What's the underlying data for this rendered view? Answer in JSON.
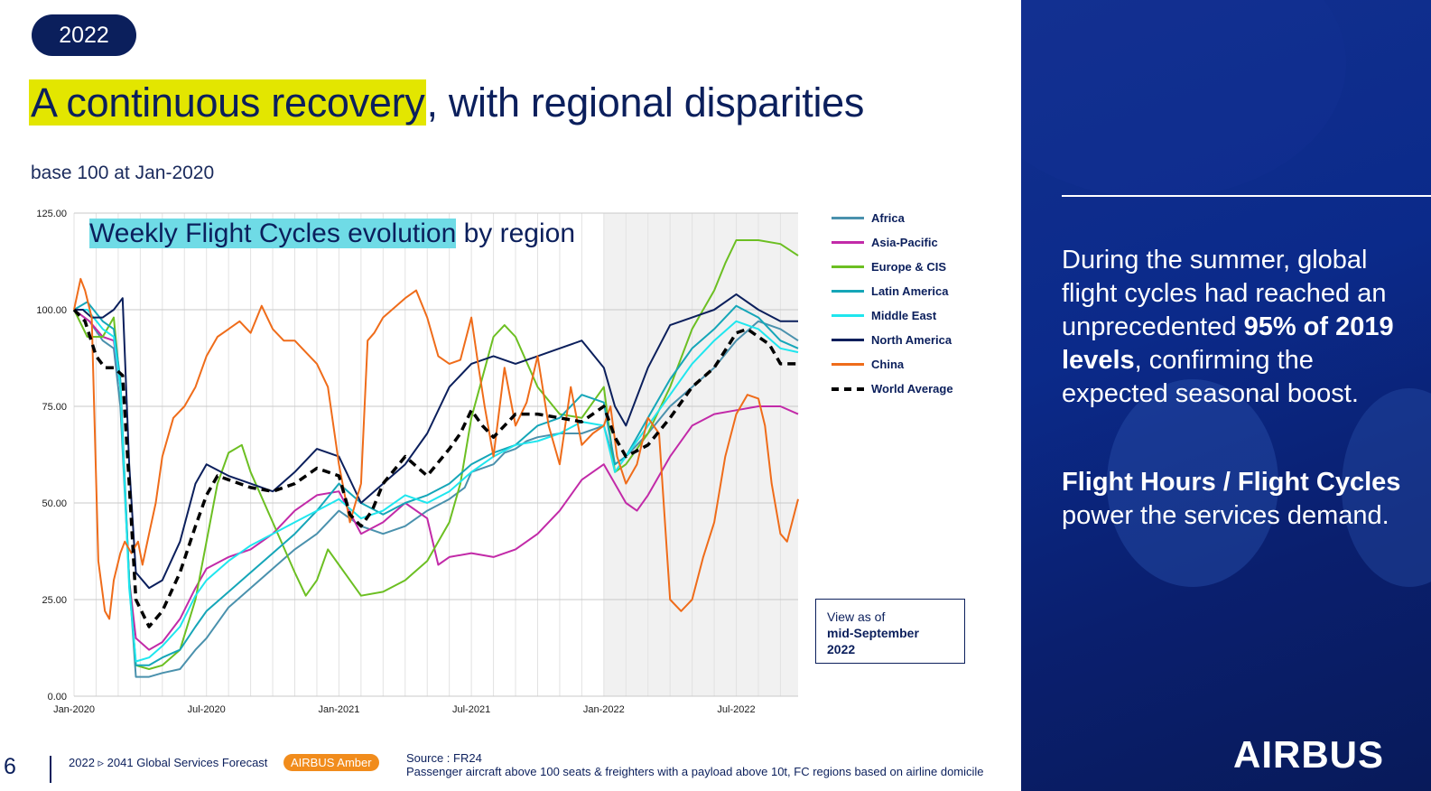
{
  "badge": "2022",
  "headline": {
    "highlight": "A continuous recovery",
    "rest": ", with regional disparities"
  },
  "subtitle": "base 100 at Jan-2020",
  "colors": {
    "Africa": "#4a91ad",
    "Asia-Pacific": "#c22aa8",
    "Europe & CIS": "#6cbf22",
    "Latin America": "#15a6b8",
    "Middle East": "#1fe6ee",
    "North America": "#0b1f5c",
    "China": "#ef6c1a",
    "World Average": "#000000"
  },
  "chart_data": {
    "type": "line",
    "title_highlight": "Weekly Flight Cycles evolution",
    "title_rest": " by region",
    "y_ticks": [
      "0.00",
      "25.00",
      "50.00",
      "75.00",
      "100.00",
      "125.00"
    ],
    "x_ticks": [
      [
        "Jan-2020",
        0
      ],
      [
        "Jul-2020",
        6
      ],
      [
        "Jan-2021",
        12
      ],
      [
        "Jul-2021",
        18
      ],
      [
        "Jan-2022",
        24
      ],
      [
        "Jul-2022",
        30
      ]
    ],
    "xlim": [
      0,
      32.8
    ],
    "ylim": [
      0,
      125
    ],
    "x_unit": "months since Jan-2020",
    "shaded_from": 24,
    "series": [
      {
        "name": "Africa",
        "x": [
          0,
          0.7,
          1.3,
          1.8,
          2.1,
          2.5,
          2.8,
          3.4,
          4,
          4.8,
          5.5,
          6,
          7,
          8,
          9,
          10,
          11,
          12,
          13,
          14,
          15,
          16,
          17,
          17.7,
          18,
          19,
          19.5,
          20,
          20.5,
          21,
          22,
          23,
          24,
          24.5,
          25,
          26,
          27,
          28,
          29,
          30,
          31,
          32,
          32.8
        ],
        "y": [
          100,
          97,
          92,
          90,
          75,
          30,
          5,
          5,
          6,
          7,
          12,
          15,
          23,
          28,
          33,
          38,
          42,
          48,
          44,
          42,
          44,
          48,
          51,
          54,
          58,
          60,
          63,
          64,
          66,
          67,
          68,
          68,
          70,
          60,
          62,
          68,
          75,
          80,
          85,
          92,
          97,
          95,
          92
        ]
      },
      {
        "name": "Asia-Pacific",
        "x": [
          0,
          0.7,
          1.3,
          1.8,
          2.1,
          2.5,
          2.8,
          3.4,
          4,
          4.8,
          5.5,
          6,
          7,
          8,
          9,
          10,
          11,
          12,
          13,
          14,
          15,
          16,
          16.5,
          17,
          18,
          19,
          20,
          21,
          22,
          23,
          24,
          25,
          25.5,
          26,
          27,
          28,
          29,
          30,
          31,
          32,
          32.8
        ],
        "y": [
          100,
          97,
          93,
          92,
          80,
          30,
          15,
          12,
          14,
          20,
          28,
          33,
          36,
          38,
          42,
          48,
          52,
          53,
          42,
          45,
          50,
          46,
          34,
          36,
          37,
          36,
          38,
          42,
          48,
          56,
          60,
          50,
          48,
          52,
          62,
          70,
          73,
          74,
          75,
          75,
          73
        ]
      },
      {
        "name": "Europe & CIS",
        "x": [
          0,
          0.6,
          1.3,
          1.8,
          2.1,
          2.5,
          2.8,
          3.4,
          4,
          4.8,
          5.5,
          6,
          6.5,
          7,
          7.6,
          8,
          9,
          10,
          10.5,
          11,
          11.5,
          12,
          13,
          14,
          15,
          16,
          17,
          17.5,
          18,
          19,
          19.5,
          20,
          21,
          22,
          23,
          24,
          24.5,
          25,
          26,
          27,
          28,
          29,
          29.5,
          30,
          31,
          32,
          32.8
        ],
        "y": [
          100,
          93,
          93,
          98,
          80,
          30,
          8,
          7,
          8,
          12,
          25,
          40,
          55,
          63,
          65,
          58,
          45,
          32,
          26,
          30,
          38,
          34,
          26,
          27,
          30,
          35,
          45,
          55,
          72,
          93,
          96,
          93,
          80,
          73,
          72,
          80,
          58,
          60,
          68,
          80,
          95,
          105,
          112,
          118,
          118,
          117,
          114
        ]
      },
      {
        "name": "Latin America",
        "x": [
          0,
          0.6,
          1.3,
          1.8,
          2.1,
          2.5,
          2.8,
          3.4,
          4,
          4.8,
          5.5,
          6,
          7,
          8,
          9,
          10,
          11,
          12,
          13,
          14,
          15,
          16,
          17,
          18,
          19,
          20,
          21,
          22,
          23,
          24,
          24.5,
          25,
          26,
          27,
          28,
          29,
          30,
          31,
          32,
          32.8
        ],
        "y": [
          100,
          102,
          97,
          95,
          82,
          30,
          8,
          8,
          10,
          12,
          18,
          22,
          27,
          32,
          37,
          42,
          48,
          55,
          50,
          47,
          50,
          52,
          55,
          60,
          63,
          65,
          70,
          72,
          78,
          76,
          60,
          62,
          72,
          82,
          90,
          95,
          101,
          98,
          92,
          90
        ]
      },
      {
        "name": "Middle East",
        "x": [
          0,
          0.6,
          1.3,
          1.8,
          2.1,
          2.5,
          2.8,
          3.4,
          4,
          4.8,
          5.5,
          6,
          7,
          8,
          9,
          10,
          11,
          12,
          13,
          14,
          15,
          16,
          17,
          18,
          19,
          20,
          21,
          22,
          23,
          24,
          24.5,
          25,
          26,
          27,
          28,
          29,
          30,
          31,
          32,
          32.8
        ],
        "y": [
          100,
          100,
          95,
          93,
          80,
          28,
          9,
          10,
          13,
          18,
          26,
          30,
          35,
          39,
          42,
          45,
          48,
          51,
          46,
          48,
          52,
          50,
          53,
          58,
          62,
          65,
          66,
          68,
          71,
          70,
          58,
          62,
          70,
          78,
          86,
          92,
          97,
          95,
          90,
          89
        ]
      },
      {
        "name": "North America",
        "x": [
          0,
          0.4,
          0.8,
          1.3,
          1.8,
          2.2,
          2.5,
          2.8,
          3.4,
          4,
          4.8,
          5.5,
          6,
          7,
          8,
          9,
          10,
          11,
          12,
          13,
          14,
          15,
          16,
          17,
          18,
          19,
          20,
          21,
          22,
          23,
          24,
          24.5,
          25,
          26,
          27,
          28,
          29,
          30,
          31,
          32,
          32.8
        ],
        "y": [
          100,
          100,
          98,
          98,
          100,
          103,
          60,
          32,
          28,
          30,
          40,
          55,
          60,
          57,
          55,
          53,
          58,
          64,
          62,
          50,
          55,
          60,
          68,
          80,
          86,
          88,
          86,
          88,
          90,
          92,
          85,
          75,
          70,
          85,
          96,
          98,
          100,
          104,
          100,
          97,
          97
        ]
      },
      {
        "name": "China",
        "x": [
          0,
          0.3,
          0.5,
          0.8,
          1.1,
          1.4,
          1.6,
          1.8,
          2.1,
          2.3,
          2.6,
          2.9,
          3.1,
          3.4,
          3.7,
          4,
          4.5,
          5,
          5.5,
          6,
          6.5,
          7,
          7.5,
          8,
          8.5,
          9,
          9.5,
          10,
          10.5,
          11,
          11.5,
          12,
          12.5,
          13,
          13.3,
          13.6,
          14,
          15,
          15.5,
          16,
          16.5,
          17,
          17.5,
          18,
          18.3,
          18.6,
          19,
          19.5,
          20,
          20.5,
          21,
          21.5,
          22,
          22.5,
          23,
          23.5,
          24,
          24.3,
          24.6,
          25,
          25.5,
          26,
          26.5,
          27,
          27.5,
          28,
          28.5,
          29,
          29.5,
          30,
          30.5,
          31,
          31.3,
          31.6,
          32,
          32.3,
          32.8
        ],
        "y": [
          100,
          108,
          105,
          98,
          35,
          22,
          20,
          30,
          37,
          40,
          37,
          40,
          34,
          42,
          50,
          62,
          72,
          75,
          80,
          88,
          93,
          95,
          97,
          94,
          101,
          95,
          92,
          92,
          89,
          86,
          80,
          60,
          45,
          55,
          92,
          94,
          98,
          103,
          105,
          98,
          88,
          86,
          87,
          98,
          86,
          75,
          62,
          85,
          70,
          76,
          88,
          70,
          60,
          80,
          65,
          68,
          70,
          75,
          62,
          55,
          60,
          72,
          68,
          25,
          22,
          25,
          36,
          45,
          62,
          73,
          78,
          77,
          70,
          55,
          42,
          40,
          51
        ]
      },
      {
        "name": "World Average",
        "x": [
          0,
          0.5,
          1,
          1.4,
          1.8,
          2.2,
          2.5,
          2.8,
          3.4,
          4,
          4.8,
          5.5,
          6,
          6.5,
          7,
          7.5,
          8,
          9,
          10,
          11,
          12,
          12.5,
          13,
          13.5,
          14,
          15,
          16,
          17,
          17.5,
          18,
          18.5,
          19,
          19.5,
          20,
          21,
          22,
          23,
          24,
          24.5,
          25,
          26,
          27,
          28,
          29,
          30,
          30.5,
          31,
          31.5,
          32,
          32.8
        ],
        "y": [
          100,
          97,
          88,
          85,
          85,
          83,
          55,
          25,
          18,
          22,
          32,
          44,
          52,
          57,
          56,
          55,
          54,
          53,
          55,
          59,
          57,
          47,
          44,
          48,
          55,
          62,
          57,
          64,
          68,
          74,
          70,
          67,
          70,
          73,
          73,
          72,
          71,
          75,
          67,
          62,
          65,
          72,
          80,
          85,
          94,
          95,
          93,
          91,
          86,
          86
        ]
      }
    ]
  },
  "view_as": {
    "line1": "View as of",
    "line2": "mid-September",
    "line3": "2022"
  },
  "footer": {
    "page_number": "6",
    "doc_title": "2022 ▹ 2041 Global Services Forecast",
    "pill": "AIRBUS Amber",
    "source_line1": "Source : FR24",
    "source_line2": "Passenger aircraft above 100 seats & freighters with a payload above 10t, FC regions based on airline domicile"
  },
  "right_panel": {
    "p1_a": "During the summer, global flight cycles had reached an unprecedented ",
    "p1_b": "95% of 2019 levels",
    "p1_c": ", confirming the expected seasonal boost.",
    "p2_a": "Flight Hours / Flight Cycles",
    "p2_b": " power the services demand.",
    "logo": "AIRBUS"
  }
}
